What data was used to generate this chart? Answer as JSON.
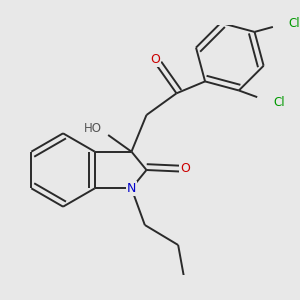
{
  "background_color": "#e8e8e8",
  "bond_color": "#2a2a2a",
  "atom_colors": {
    "O": "#cc0000",
    "N": "#0000cc",
    "Cl": "#009900",
    "H": "#555555",
    "C": "#2a2a2a"
  },
  "figsize": [
    3.0,
    3.0
  ],
  "dpi": 100
}
